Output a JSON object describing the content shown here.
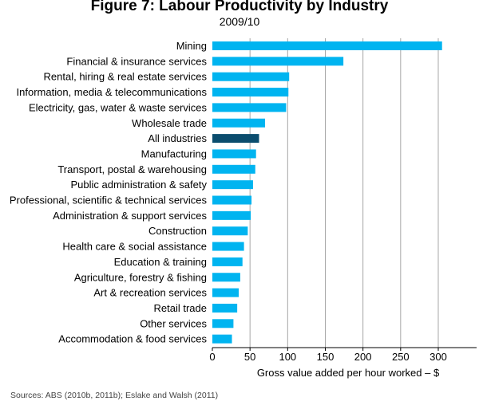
{
  "chart_data": {
    "type": "bar",
    "orientation": "horizontal",
    "title": "Figure 7: Labour Productivity by Industry",
    "subtitle": "2009/10",
    "xlabel": "Gross value added per hour worked – $",
    "ylabel": "",
    "xlim": [
      0,
      350
    ],
    "xticks": [
      0,
      50,
      100,
      150,
      200,
      250,
      300
    ],
    "grid": true,
    "categories": [
      "Mining",
      "Financial & insurance services",
      "Rental, hiring & real estate services",
      "Information, media & telecommunications",
      "Electricity, gas, water & waste services",
      "Wholesale trade",
      "All industries",
      "Manufacturing",
      "Transport, postal & warehousing",
      "Public administration & safety",
      "Professional, scientific & technical services",
      "Administration & support services",
      "Construction",
      "Health care & social assistance",
      "Education & training",
      "Agriculture, forestry & fishing",
      "Art & recreation services",
      "Retail trade",
      "Other services",
      "Accommodation & food services"
    ],
    "values": [
      305,
      174,
      102,
      101,
      98,
      70,
      62,
      58,
      57,
      54,
      52,
      51,
      47,
      42,
      40,
      37,
      35,
      33,
      28,
      26
    ],
    "highlight": "All industries",
    "colors": {
      "bar": "#00b4f0",
      "highlight": "#0b4d6e",
      "grid": "#a6a6a6"
    }
  },
  "footer": {
    "source": "Sources: ABS (2010b, 2011b); Eslake and Walsh (2011)"
  }
}
